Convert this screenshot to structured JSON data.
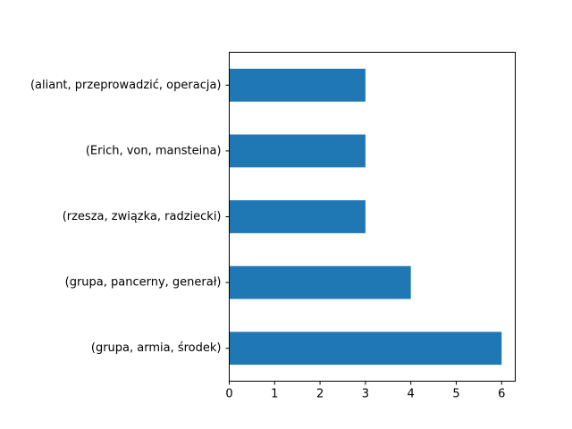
{
  "chart_data": {
    "type": "bar",
    "orientation": "horizontal",
    "categories": [
      "(grupa, armia, środek)",
      "(grupa, pancerny, generał)",
      "(rzesza, związka, radziecki)",
      "(Erich, von, mansteina)",
      "(aliant, przeprowadzić, operacja)"
    ],
    "values": [
      6,
      4,
      3,
      3,
      3
    ],
    "xticks": [
      0,
      1,
      2,
      3,
      4,
      5,
      6
    ],
    "xlim": [
      0,
      6.3
    ],
    "title": "",
    "xlabel": "",
    "ylabel": "",
    "grid": false,
    "bar_color": "#1f77b4"
  }
}
